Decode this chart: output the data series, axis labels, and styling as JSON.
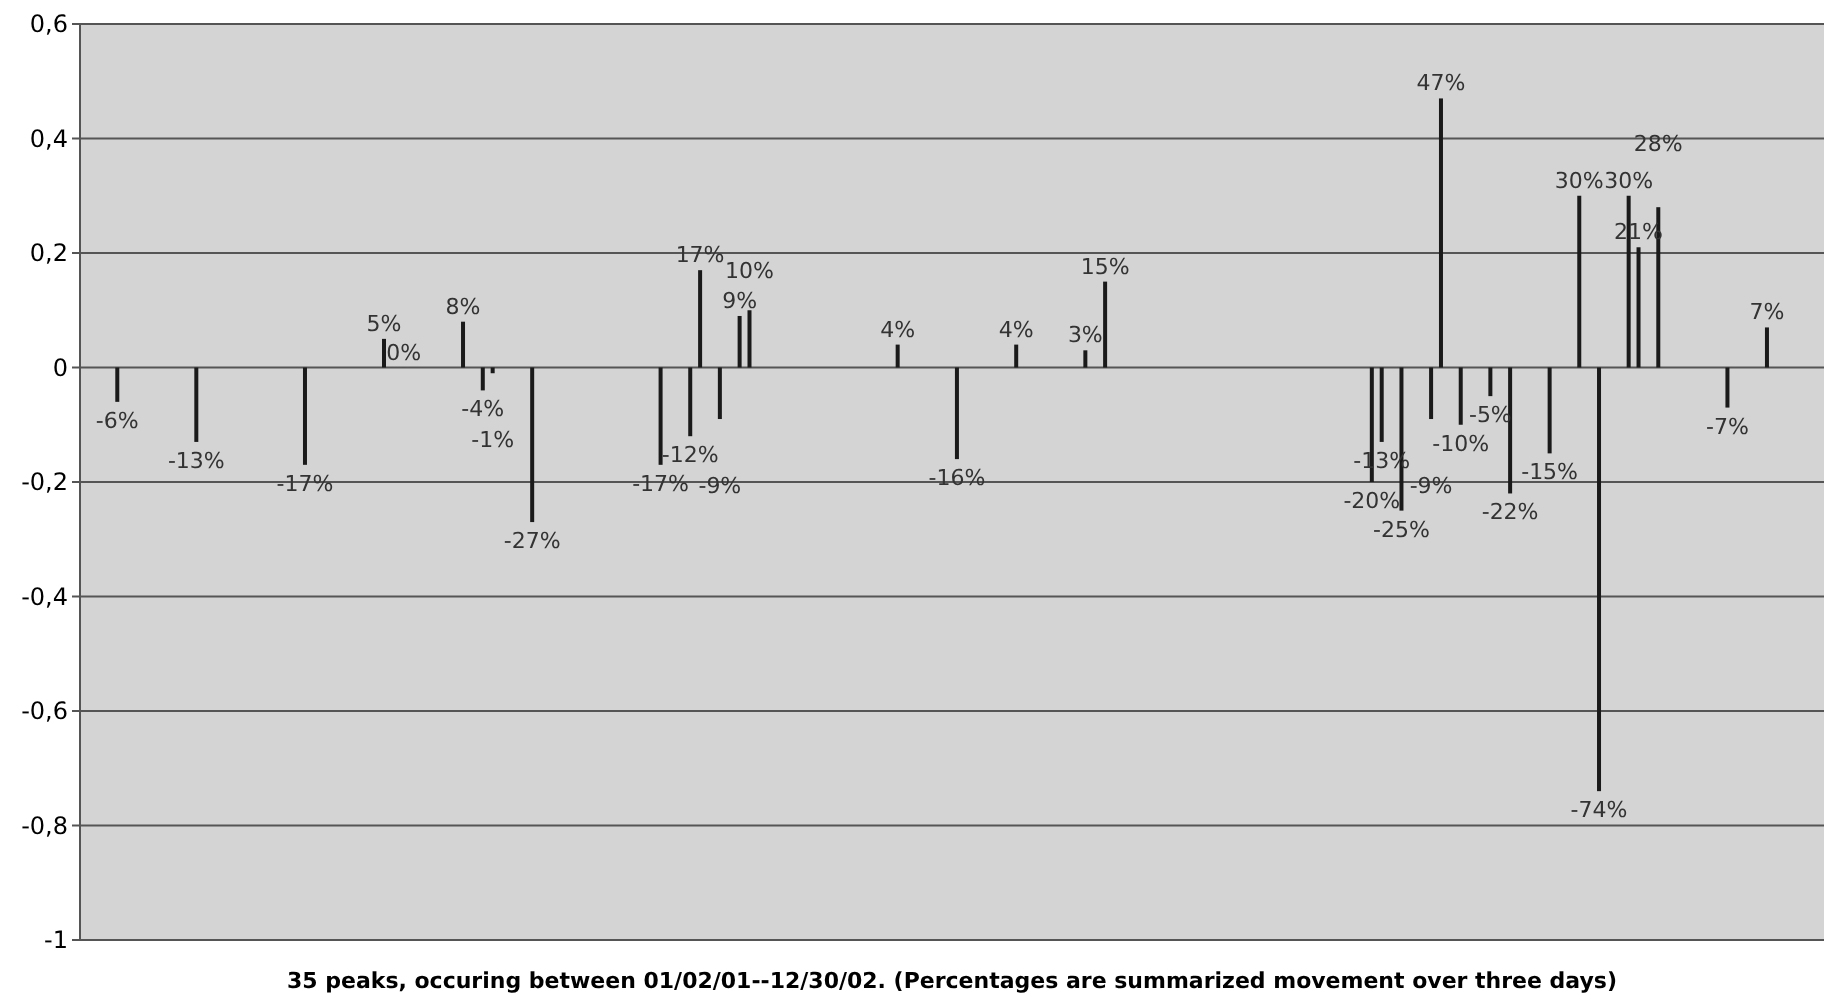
{
  "chart_data": {
    "type": "bar",
    "xlabel": "35 peaks,  occuring between 01/02/01--12/30/02. (Percentages are summarized movement over three days)",
    "categories": [
      null,
      null,
      null,
      null,
      null,
      null,
      null,
      null,
      null,
      null,
      null,
      null,
      null,
      null,
      null,
      null,
      null,
      null,
      null,
      null,
      null,
      null,
      null,
      null,
      null,
      null,
      null,
      null,
      null,
      null,
      null,
      null,
      null,
      null,
      null,
      null,
      null,
      null,
      null,
      null,
      null,
      null,
      null,
      null,
      null,
      null,
      null,
      null,
      null,
      null,
      null,
      null,
      null,
      null,
      null,
      null,
      null,
      null,
      null,
      null,
      null,
      null,
      null,
      null,
      null,
      null,
      null,
      null,
      null,
      null,
      null,
      null,
      null,
      null,
      null,
      null,
      null,
      null,
      null,
      null,
      null,
      null,
      null,
      null,
      null,
      null,
      null,
      null,
      null,
      null,
      null,
      null,
      null,
      null,
      null,
      null,
      null,
      null,
      null,
      null,
      null,
      null,
      null,
      null,
      null,
      null,
      null,
      null,
      null,
      null,
      null,
      null,
      null,
      null,
      null,
      null,
      null,
      null,
      null,
      null,
      null,
      null,
      null,
      null,
      null,
      null,
      null,
      null,
      null,
      null,
      null,
      null,
      null,
      null,
      null,
      null,
      null,
      null,
      null,
      null,
      null,
      null,
      null,
      null,
      null,
      null,
      null,
      null,
      null,
      null,
      null,
      null,
      null,
      null,
      null,
      null,
      null,
      null,
      null,
      null,
      null,
      null,
      null,
      null,
      null,
      null,
      null,
      null,
      null,
      null,
      null,
      null,
      null,
      null,
      null,
      null
    ],
    "values": [
      null,
      null,
      null,
      -0.06,
      null,
      null,
      null,
      null,
      null,
      null,
      null,
      -0.13,
      null,
      null,
      null,
      null,
      null,
      null,
      null,
      null,
      null,
      null,
      -0.17,
      null,
      null,
      null,
      null,
      null,
      null,
      null,
      0.05,
      null,
      0,
      null,
      null,
      null,
      null,
      null,
      0.08,
      null,
      -0.04,
      -0.01,
      null,
      null,
      null,
      -0.27,
      null,
      null,
      null,
      null,
      null,
      null,
      null,
      null,
      null,
      null,
      null,
      null,
      -0.17,
      null,
      null,
      -0.12,
      0.17,
      null,
      -0.09,
      null,
      0.09,
      0.1,
      null,
      null,
      null,
      null,
      null,
      null,
      null,
      null,
      null,
      null,
      null,
      null,
      null,
      null,
      0.04,
      null,
      null,
      null,
      null,
      null,
      -0.16,
      null,
      null,
      null,
      null,
      null,
      0.04,
      null,
      null,
      null,
      null,
      null,
      null,
      0.03,
      null,
      0.15,
      null,
      null,
      null,
      null,
      null,
      null,
      null,
      null,
      null,
      null,
      null,
      null,
      null,
      null,
      null,
      null,
      null,
      null,
      null,
      null,
      null,
      null,
      null,
      null,
      null,
      null,
      -0.2,
      -0.13,
      null,
      -0.25,
      null,
      null,
      -0.09,
      0.47,
      null,
      -0.1,
      null,
      null,
      -0.05,
      null,
      -0.22,
      null,
      null,
      null,
      -0.15,
      null,
      null,
      0.3,
      null,
      -0.74,
      null,
      null,
      0.3,
      0.21,
      null,
      0.28,
      null,
      null,
      null,
      null,
      null,
      null,
      -0.07,
      null,
      null,
      null,
      0.07,
      null,
      null,
      null,
      null,
      null
    ],
    "value_labels": [
      null,
      null,
      null,
      "-6%",
      null,
      null,
      null,
      null,
      null,
      null,
      null,
      "-13%",
      null,
      null,
      null,
      null,
      null,
      null,
      null,
      null,
      null,
      null,
      "-17%",
      null,
      null,
      null,
      null,
      null,
      null,
      null,
      "5%",
      null,
      "0%",
      null,
      null,
      null,
      null,
      null,
      "8%",
      null,
      "-4%",
      "-1%",
      null,
      null,
      null,
      "-27%",
      null,
      null,
      null,
      null,
      null,
      null,
      null,
      null,
      null,
      null,
      null,
      null,
      "-17%",
      null,
      null,
      "-12%",
      "17%",
      null,
      "-9%",
      null,
      "9%",
      "10%",
      null,
      null,
      null,
      null,
      null,
      null,
      null,
      null,
      null,
      null,
      null,
      null,
      null,
      null,
      "4%",
      null,
      null,
      null,
      null,
      null,
      "-16%",
      null,
      null,
      null,
      null,
      null,
      "4%",
      null,
      null,
      null,
      null,
      null,
      null,
      "3%",
      null,
      "15%",
      null,
      null,
      null,
      null,
      null,
      null,
      null,
      null,
      null,
      null,
      null,
      null,
      null,
      null,
      null,
      null,
      null,
      null,
      null,
      null,
      null,
      null,
      null,
      null,
      null,
      null,
      "-20%",
      "-13%",
      null,
      "-25%",
      null,
      null,
      "-9%",
      "47%",
      null,
      "-10%",
      null,
      null,
      "-5%",
      null,
      "-22%",
      null,
      null,
      null,
      "-15%",
      null,
      null,
      "30%",
      null,
      "-74%",
      null,
      null,
      "30%",
      "21%",
      null,
      "28%",
      null,
      null,
      null,
      null,
      null,
      null,
      "-7%",
      null,
      null,
      null,
      "7%",
      null,
      null,
      null,
      null,
      null
    ],
    "color": "#1a1a1a",
    "ylim": [
      -1,
      0.6
    ],
    "yticks": [
      {
        "value": -1,
        "label": "-1"
      },
      {
        "value": -0.8,
        "label": "-0,8"
      },
      {
        "value": -0.6,
        "label": "-0,6"
      },
      {
        "value": -0.4,
        "label": "-0,4"
      },
      {
        "value": -0.2,
        "label": "-0,2"
      },
      {
        "value": 0,
        "label": "0"
      },
      {
        "value": 0.2,
        "label": "0,2"
      },
      {
        "value": 0.4,
        "label": "0,4"
      },
      {
        "value": 0.6,
        "label": "0,6"
      }
    ],
    "grid": "y",
    "tick_labels": "y"
  }
}
